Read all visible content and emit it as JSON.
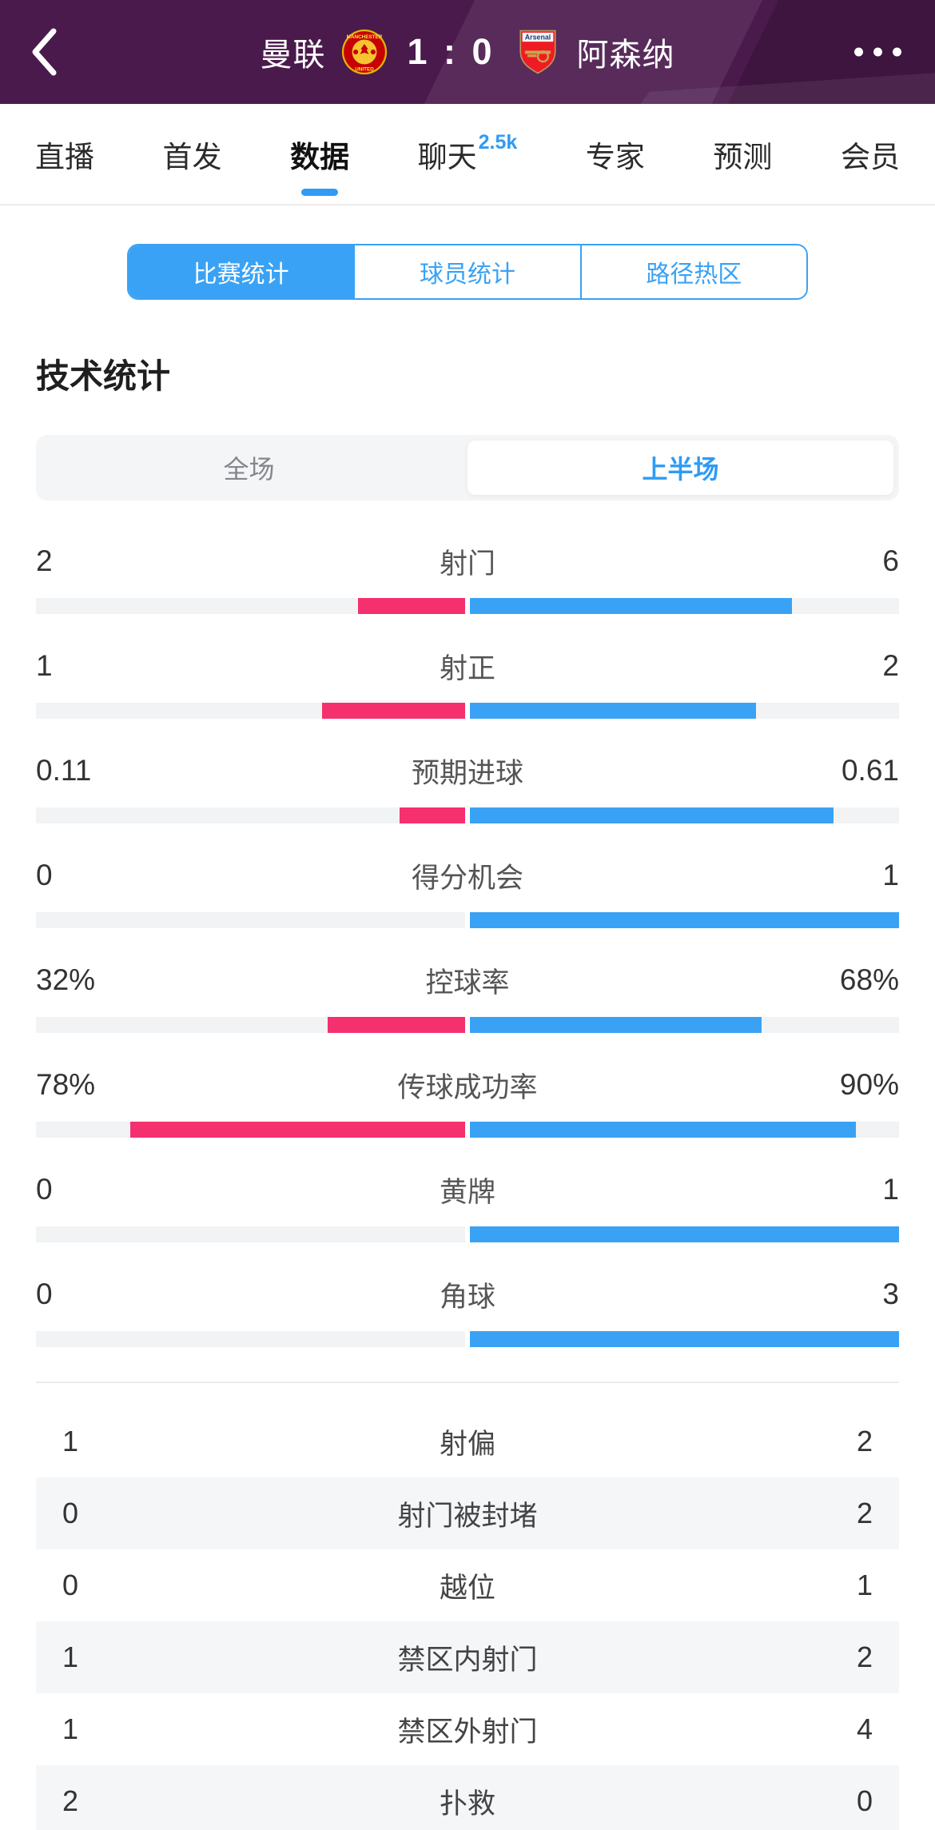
{
  "header": {
    "home_team": "曼联",
    "away_team": "阿森纳",
    "score": "1 : 0",
    "home_crest_text_top": "MANCHESTER",
    "home_crest_text_bottom": "UNITED",
    "away_crest_text": "Arsenal"
  },
  "tabs": [
    {
      "key": "live",
      "label": "直播",
      "selected": false
    },
    {
      "key": "lineup",
      "label": "首发",
      "selected": false
    },
    {
      "key": "data",
      "label": "数据",
      "selected": true
    },
    {
      "key": "chat",
      "label": "聊天",
      "selected": false,
      "badge": "2.5k"
    },
    {
      "key": "expert",
      "label": "专家",
      "selected": false
    },
    {
      "key": "predict",
      "label": "预测",
      "selected": false
    },
    {
      "key": "member",
      "label": "会员",
      "selected": false
    }
  ],
  "segments": [
    {
      "key": "match-stats",
      "label": "比赛统计",
      "selected": true
    },
    {
      "key": "player-stats",
      "label": "球员统计",
      "selected": false
    },
    {
      "key": "heatmap",
      "label": "路径热区",
      "selected": false
    }
  ],
  "section_title": "技术统计",
  "periods": [
    {
      "key": "full-match",
      "label": "全场",
      "selected": false
    },
    {
      "key": "first-half",
      "label": "上半场",
      "selected": true
    }
  ],
  "stats_bars": [
    {
      "key": "shots",
      "label": "射门",
      "home": "2",
      "away": "6"
    },
    {
      "key": "shots-on-target",
      "label": "射正",
      "home": "1",
      "away": "2"
    },
    {
      "key": "expected-goals",
      "label": "预期进球",
      "home": "0.11",
      "away": "0.61"
    },
    {
      "key": "big-chances",
      "label": "得分机会",
      "home": "0",
      "away": "1"
    },
    {
      "key": "possession",
      "label": "控球率",
      "home": "32%",
      "away": "68%"
    },
    {
      "key": "pass-accuracy",
      "label": "传球成功率",
      "home": "78%",
      "away": "90%"
    },
    {
      "key": "yellow-cards",
      "label": "黄牌",
      "home": "0",
      "away": "1"
    },
    {
      "key": "corners",
      "label": "角球",
      "home": "0",
      "away": "3"
    }
  ],
  "stats_table": [
    {
      "key": "shots-off-target",
      "label": "射偏",
      "home": "1",
      "away": "2"
    },
    {
      "key": "shots-blocked",
      "label": "射门被封堵",
      "home": "0",
      "away": "2"
    },
    {
      "key": "offsides",
      "label": "越位",
      "home": "0",
      "away": "1"
    },
    {
      "key": "shots-inside-box",
      "label": "禁区内射门",
      "home": "1",
      "away": "2"
    },
    {
      "key": "shots-outside-box",
      "label": "禁区外射门",
      "home": "1",
      "away": "4"
    },
    {
      "key": "saves",
      "label": "扑救",
      "home": "2",
      "away": "0"
    }
  ],
  "colors": {
    "home": "#F5306E",
    "away": "#3AA2F5",
    "accent": "#2F9BF4",
    "header_bg": "#4A1A4C"
  }
}
